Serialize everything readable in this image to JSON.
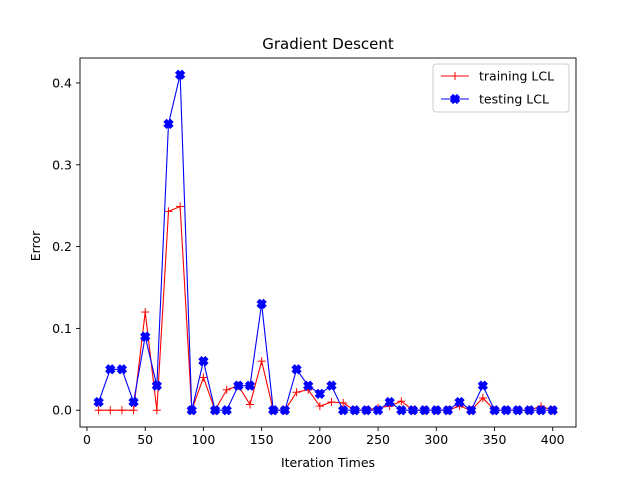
{
  "chart_data": {
    "type": "line",
    "title": "Gradient Descent",
    "xlabel": "Iteration Times",
    "ylabel": "Error",
    "xlim": [
      -6,
      420
    ],
    "ylim": [
      -0.0205,
      0.4305
    ],
    "xticks": [
      0,
      50,
      100,
      150,
      200,
      250,
      300,
      350,
      400
    ],
    "xtick_labels": [
      "0",
      "50",
      "100",
      "150",
      "200",
      "250",
      "300",
      "350",
      "400"
    ],
    "yticks": [
      0.0,
      0.1,
      0.2,
      0.3,
      0.4
    ],
    "ytick_labels": [
      "0.0",
      "0.1",
      "0.2",
      "0.3",
      "0.4"
    ],
    "grid": false,
    "legend_position": "top-right",
    "x": [
      10,
      20,
      30,
      40,
      50,
      60,
      70,
      80,
      90,
      100,
      110,
      120,
      130,
      140,
      150,
      160,
      170,
      180,
      190,
      200,
      210,
      220,
      230,
      240,
      250,
      260,
      270,
      280,
      290,
      300,
      310,
      320,
      330,
      340,
      350,
      360,
      370,
      380,
      390,
      400
    ],
    "series": [
      {
        "name": "training LCL",
        "color": "#ff0000",
        "marker": "plus",
        "values": [
          0,
          0,
          0,
          0,
          0.12,
          0,
          0.243,
          0.249,
          0,
          0.04,
          0,
          0.025,
          0.03,
          0.007,
          0.06,
          0,
          0,
          0.022,
          0.025,
          0.005,
          0.01,
          0.009,
          0,
          0,
          0.003,
          0.005,
          0.011,
          0,
          0,
          0,
          0,
          0.005,
          0,
          0.015,
          0,
          0,
          0,
          0,
          0.005,
          0
        ]
      },
      {
        "name": "testing LCL",
        "color": "#0000ff",
        "marker": "x-filled",
        "values": [
          0.01,
          0.05,
          0.05,
          0.01,
          0.09,
          0.03,
          0.35,
          0.41,
          0,
          0.06,
          0,
          0,
          0.03,
          0.03,
          0.13,
          0,
          0,
          0.05,
          0.03,
          0.02,
          0.03,
          0,
          0,
          0,
          0,
          0.01,
          0,
          0,
          0,
          0,
          0,
          0.01,
          0,
          0.03,
          0,
          0,
          0,
          0,
          0,
          0
        ]
      }
    ]
  }
}
